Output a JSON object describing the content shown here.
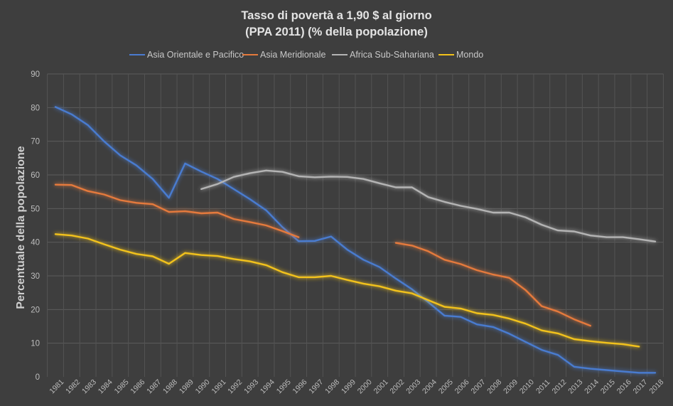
{
  "chart_data": {
    "type": "line",
    "title_line1": "Tasso di povertà a 1,90 $ al giorno",
    "title_line2": "(PPA 2011) (% della popolazione)",
    "xlabel": "",
    "ylabel": "Percentuale della popolazione",
    "ylim": [
      0,
      90
    ],
    "yticks": [
      "0",
      "10",
      "20",
      "30",
      "40",
      "50",
      "60",
      "70",
      "80",
      "90"
    ],
    "grid": true,
    "legend_position": "top",
    "x": [
      "1981",
      "1982",
      "1983",
      "1984",
      "1985",
      "1986",
      "1987",
      "1988",
      "1989",
      "1990",
      "1991",
      "1992",
      "1993",
      "1994",
      "1995",
      "1996",
      "1997",
      "1998",
      "1999",
      "2000",
      "2001",
      "2002",
      "2003",
      "2004",
      "2005",
      "2006",
      "2007",
      "2008",
      "2009",
      "2010",
      "2011",
      "2012",
      "2013",
      "2014",
      "2015",
      "2016",
      "2017",
      "2018"
    ],
    "series": [
      {
        "name": "Asia Orientale e Pacifico",
        "color": "#4a7bd0",
        "values": [
          80.2,
          78.0,
          74.8,
          70.0,
          65.8,
          62.8,
          58.8,
          53.2,
          63.4,
          61.0,
          58.8,
          55.8,
          52.8,
          49.5,
          44.5,
          40.3,
          40.4,
          41.7,
          37.8,
          34.8,
          32.6,
          29.2,
          26.0,
          22.2,
          18.2,
          17.8,
          15.6,
          14.8,
          12.8,
          10.4,
          8.0,
          6.5,
          3.0,
          2.4,
          2.0,
          1.6,
          1.2,
          1.2
        ]
      },
      {
        "name": "Asia Meridionale",
        "color": "#e57a3c",
        "values": [
          57.1,
          57.0,
          55.2,
          54.2,
          52.5,
          51.7,
          51.3,
          49.0,
          49.2,
          48.6,
          48.8,
          46.9,
          46.0,
          45.0,
          43.3,
          41.5,
          null,
          null,
          null,
          null,
          null,
          39.8,
          39.0,
          37.3,
          34.8,
          33.5,
          31.7,
          30.4,
          29.4,
          25.8,
          21.0,
          19.4,
          17.1,
          15.2,
          null,
          null,
          null,
          null
        ]
      },
      {
        "name": "Africa Sub-Sahariana",
        "color": "#b4b4b4",
        "values": [
          null,
          null,
          null,
          null,
          null,
          null,
          null,
          null,
          null,
          55.8,
          57.3,
          59.4,
          60.5,
          61.3,
          60.9,
          59.6,
          59.3,
          59.5,
          59.4,
          58.8,
          57.5,
          56.3,
          56.3,
          53.4,
          52.0,
          50.8,
          49.9,
          48.8,
          48.8,
          47.4,
          45.2,
          43.5,
          43.2,
          42.0,
          41.5,
          41.5,
          40.9,
          40.2
        ]
      },
      {
        "name": "Mondo",
        "color": "#f2c21b",
        "values": [
          42.4,
          42.0,
          41.1,
          39.4,
          37.8,
          36.5,
          35.8,
          33.6,
          36.8,
          36.2,
          35.9,
          35.0,
          34.3,
          33.2,
          31.1,
          29.6,
          29.6,
          30.0,
          28.8,
          27.7,
          26.9,
          25.6,
          24.8,
          22.8,
          20.8,
          20.3,
          18.9,
          18.4,
          17.3,
          15.8,
          13.8,
          12.9,
          11.2,
          10.6,
          10.1,
          9.7,
          9.0,
          null
        ]
      }
    ]
  }
}
